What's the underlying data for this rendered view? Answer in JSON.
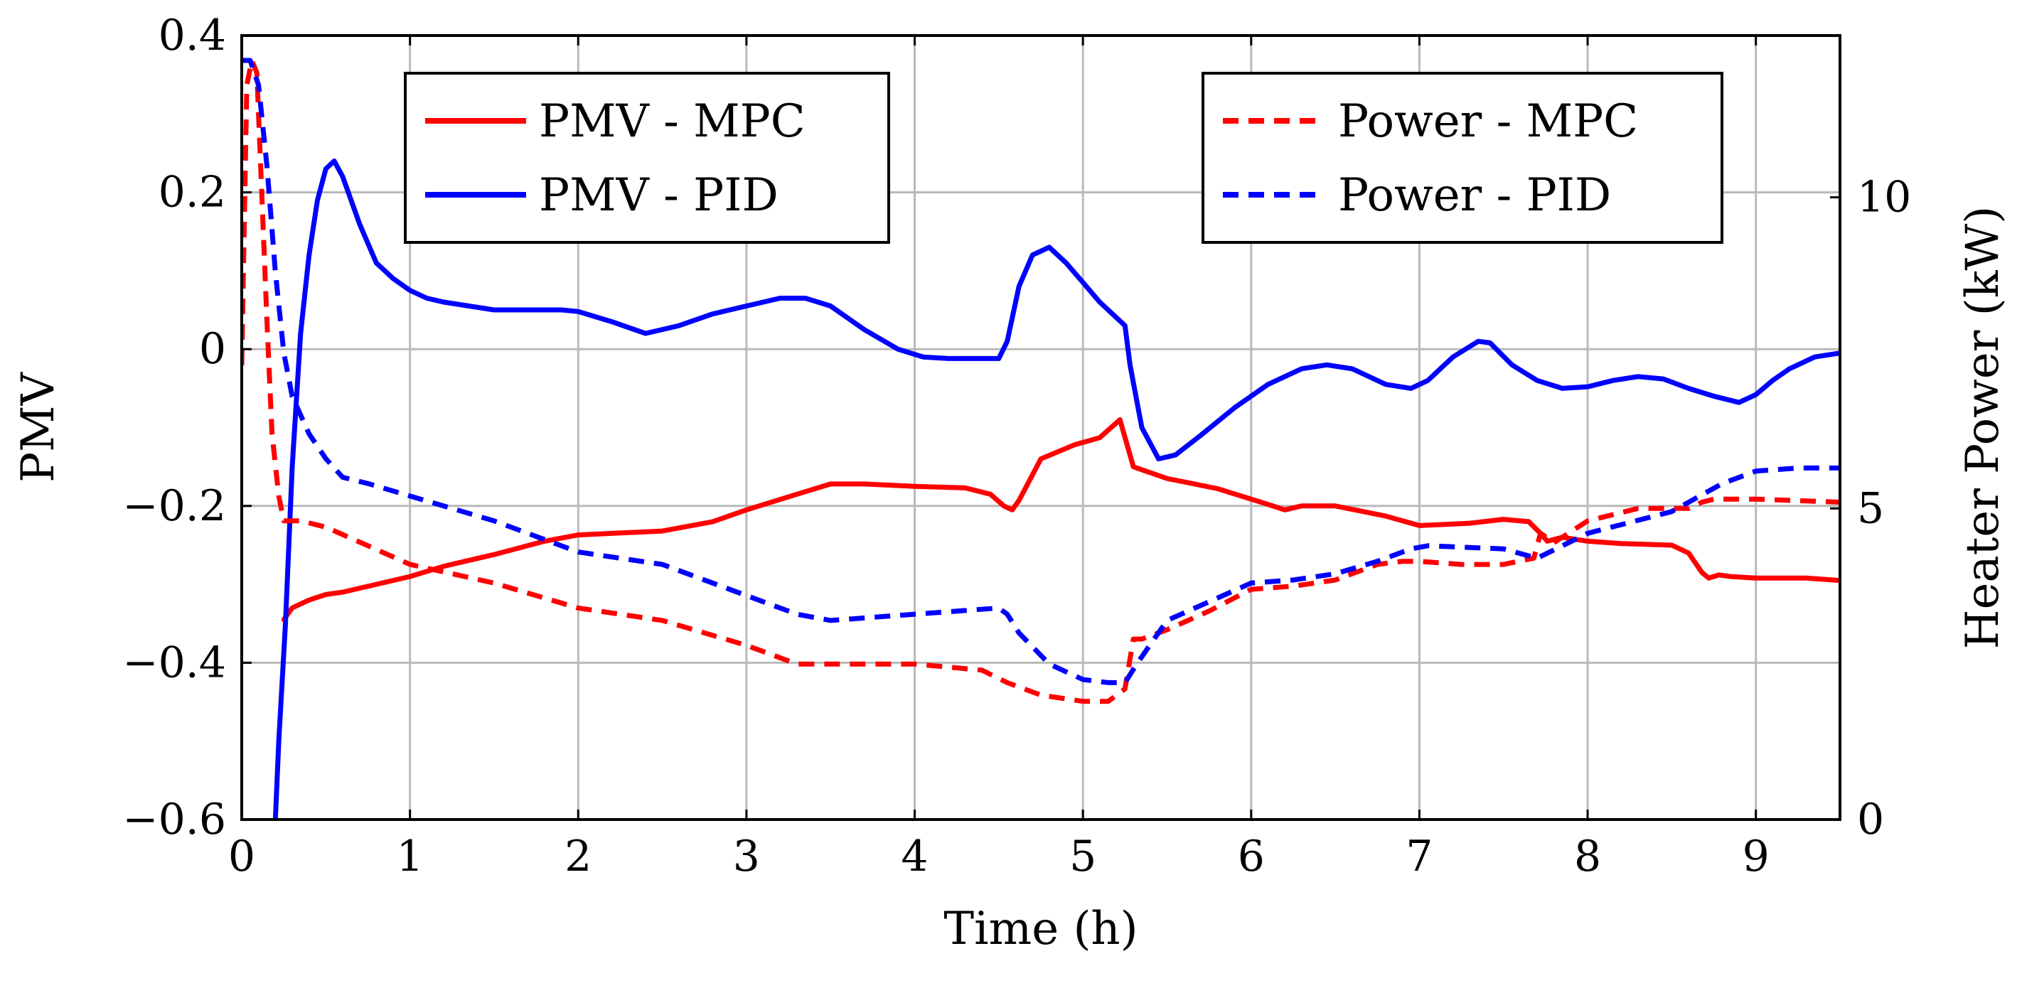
{
  "chart_data": {
    "type": "line",
    "xlabel": "Time (h)",
    "ylabel": "PMV",
    "y2label": "Heater Power (kW)",
    "xlim": [
      0,
      9.5
    ],
    "ylim": [
      -0.6,
      0.4
    ],
    "y2lim": [
      0,
      12.6
    ],
    "xticks": [
      "0",
      "1",
      "2",
      "3",
      "4",
      "5",
      "6",
      "7",
      "8",
      "9"
    ],
    "yticks": [
      "0.4",
      "0.2",
      "0",
      "−0.2",
      "−0.4",
      "−0.6"
    ],
    "y2ticks": [
      "10",
      "5",
      "0"
    ],
    "grid": true,
    "legends": [
      {
        "placement": "top-left",
        "entries": [
          "PMV - MPC",
          "PMV - PID"
        ]
      },
      {
        "placement": "top-right",
        "entries": [
          "Power - MPC",
          "Power - PID"
        ]
      }
    ],
    "series": [
      {
        "name": "PMV - MPC",
        "axis": "left",
        "color": "#ff0000",
        "style": "solid",
        "x": [
          0.25,
          0.3,
          0.4,
          0.5,
          0.6,
          0.8,
          1.0,
          1.2,
          1.5,
          1.8,
          2.0,
          2.2,
          2.5,
          2.8,
          3.0,
          3.3,
          3.5,
          3.7,
          4.0,
          4.3,
          4.45,
          4.53,
          4.58,
          4.62,
          4.75,
          4.95,
          5.1,
          5.22,
          5.26,
          5.3,
          5.5,
          5.8,
          6.1,
          6.2,
          6.3,
          6.5,
          6.8,
          7.0,
          7.3,
          7.5,
          7.65,
          7.72,
          7.76,
          7.85,
          8.0,
          8.2,
          8.5,
          8.6,
          8.68,
          8.72,
          8.78,
          8.85,
          9.0,
          9.3,
          9.5
        ],
        "values": [
          -0.345,
          -0.33,
          -0.32,
          -0.313,
          -0.31,
          -0.3,
          -0.29,
          -0.277,
          -0.262,
          -0.245,
          -0.237,
          -0.235,
          -0.232,
          -0.22,
          -0.205,
          -0.185,
          -0.172,
          -0.172,
          -0.175,
          -0.177,
          -0.185,
          -0.2,
          -0.205,
          -0.193,
          -0.14,
          -0.122,
          -0.113,
          -0.09,
          -0.12,
          -0.15,
          -0.165,
          -0.178,
          -0.198,
          -0.205,
          -0.2,
          -0.2,
          -0.213,
          -0.225,
          -0.222,
          -0.217,
          -0.22,
          -0.235,
          -0.245,
          -0.24,
          -0.245,
          -0.248,
          -0.25,
          -0.26,
          -0.285,
          -0.292,
          -0.288,
          -0.29,
          -0.292,
          -0.292,
          -0.295
        ]
      },
      {
        "name": "PMV - PID",
        "axis": "left",
        "color": "#0000ff",
        "style": "solid",
        "x": [
          0.2,
          0.22,
          0.26,
          0.3,
          0.35,
          0.4,
          0.45,
          0.5,
          0.55,
          0.6,
          0.7,
          0.8,
          0.9,
          1.0,
          1.1,
          1.2,
          1.35,
          1.5,
          1.7,
          1.9,
          2.0,
          2.2,
          2.4,
          2.6,
          2.8,
          3.0,
          3.1,
          3.2,
          3.35,
          3.5,
          3.7,
          3.9,
          4.05,
          4.2,
          4.4,
          4.5,
          4.55,
          4.62,
          4.7,
          4.8,
          4.9,
          5.0,
          5.1,
          5.2,
          5.25,
          5.28,
          5.35,
          5.45,
          5.55,
          5.7,
          5.9,
          6.1,
          6.3,
          6.45,
          6.6,
          6.8,
          6.95,
          7.05,
          7.2,
          7.35,
          7.42,
          7.55,
          7.7,
          7.85,
          8.0,
          8.15,
          8.3,
          8.45,
          8.6,
          8.75,
          8.9,
          9.0,
          9.1,
          9.2,
          9.35,
          9.5
        ],
        "values": [
          -0.6,
          -0.5,
          -0.35,
          -0.15,
          0.02,
          0.12,
          0.19,
          0.23,
          0.24,
          0.22,
          0.16,
          0.11,
          0.09,
          0.075,
          0.065,
          0.06,
          0.055,
          0.05,
          0.05,
          0.05,
          0.048,
          0.035,
          0.02,
          0.03,
          0.045,
          0.055,
          0.06,
          0.065,
          0.065,
          0.055,
          0.025,
          0.0,
          -0.01,
          -0.012,
          -0.012,
          -0.012,
          0.01,
          0.08,
          0.12,
          0.13,
          0.11,
          0.085,
          0.06,
          0.04,
          0.03,
          -0.02,
          -0.1,
          -0.14,
          -0.135,
          -0.11,
          -0.075,
          -0.045,
          -0.025,
          -0.02,
          -0.025,
          -0.045,
          -0.05,
          -0.04,
          -0.01,
          0.01,
          0.008,
          -0.02,
          -0.04,
          -0.05,
          -0.048,
          -0.04,
          -0.035,
          -0.038,
          -0.05,
          -0.06,
          -0.068,
          -0.058,
          -0.04,
          -0.025,
          -0.01,
          -0.005
        ]
      },
      {
        "name": "Power - MPC",
        "axis": "right",
        "color": "#ff0000",
        "style": "dashed",
        "x": [
          0.0,
          0.03,
          0.06,
          0.09,
          0.12,
          0.15,
          0.18,
          0.22,
          0.25,
          0.35,
          0.5,
          0.75,
          1.0,
          1.5,
          2.0,
          2.5,
          3.0,
          3.3,
          3.5,
          4.0,
          4.4,
          4.55,
          4.75,
          5.0,
          5.15,
          5.25,
          5.3,
          5.35,
          5.5,
          5.75,
          6.0,
          6.25,
          6.5,
          6.75,
          6.9,
          7.0,
          7.25,
          7.5,
          7.68,
          7.72,
          7.8,
          8.0,
          8.3,
          8.6,
          8.68,
          8.75,
          8.85,
          9.0,
          9.5
        ],
        "values": [
          7.3,
          11.8,
          12.2,
          12.0,
          10.0,
          8.0,
          6.2,
          5.2,
          4.8,
          4.8,
          4.7,
          4.4,
          4.1,
          3.8,
          3.4,
          3.2,
          2.8,
          2.5,
          2.5,
          2.5,
          2.4,
          2.2,
          2.0,
          1.9,
          1.9,
          2.1,
          2.9,
          2.9,
          3.05,
          3.35,
          3.7,
          3.75,
          3.85,
          4.1,
          4.15,
          4.15,
          4.1,
          4.1,
          4.2,
          4.6,
          4.45,
          4.8,
          5.0,
          5.0,
          5.1,
          5.15,
          5.15,
          5.15,
          5.1
        ]
      },
      {
        "name": "Power - PID",
        "axis": "right",
        "color": "#0000ff",
        "style": "dashed",
        "x": [
          0.0,
          0.05,
          0.1,
          0.15,
          0.2,
          0.25,
          0.3,
          0.4,
          0.5,
          0.6,
          0.75,
          1.0,
          1.5,
          2.0,
          2.5,
          3.0,
          3.3,
          3.5,
          4.0,
          4.5,
          4.55,
          4.62,
          4.8,
          5.0,
          5.15,
          5.25,
          5.32,
          5.5,
          5.75,
          6.0,
          6.25,
          6.5,
          6.75,
          6.95,
          7.05,
          7.5,
          7.7,
          8.0,
          8.5,
          8.8,
          9.0,
          9.25,
          9.5
        ],
        "values": [
          12.2,
          12.2,
          11.8,
          10.5,
          8.8,
          7.5,
          6.8,
          6.2,
          5.8,
          5.5,
          5.4,
          5.2,
          4.8,
          4.3,
          4.1,
          3.6,
          3.3,
          3.2,
          3.3,
          3.4,
          3.3,
          3.0,
          2.5,
          2.25,
          2.2,
          2.2,
          2.5,
          3.2,
          3.5,
          3.8,
          3.85,
          3.95,
          4.15,
          4.35,
          4.4,
          4.35,
          4.2,
          4.6,
          4.95,
          5.4,
          5.6,
          5.65,
          5.65
        ]
      }
    ]
  }
}
